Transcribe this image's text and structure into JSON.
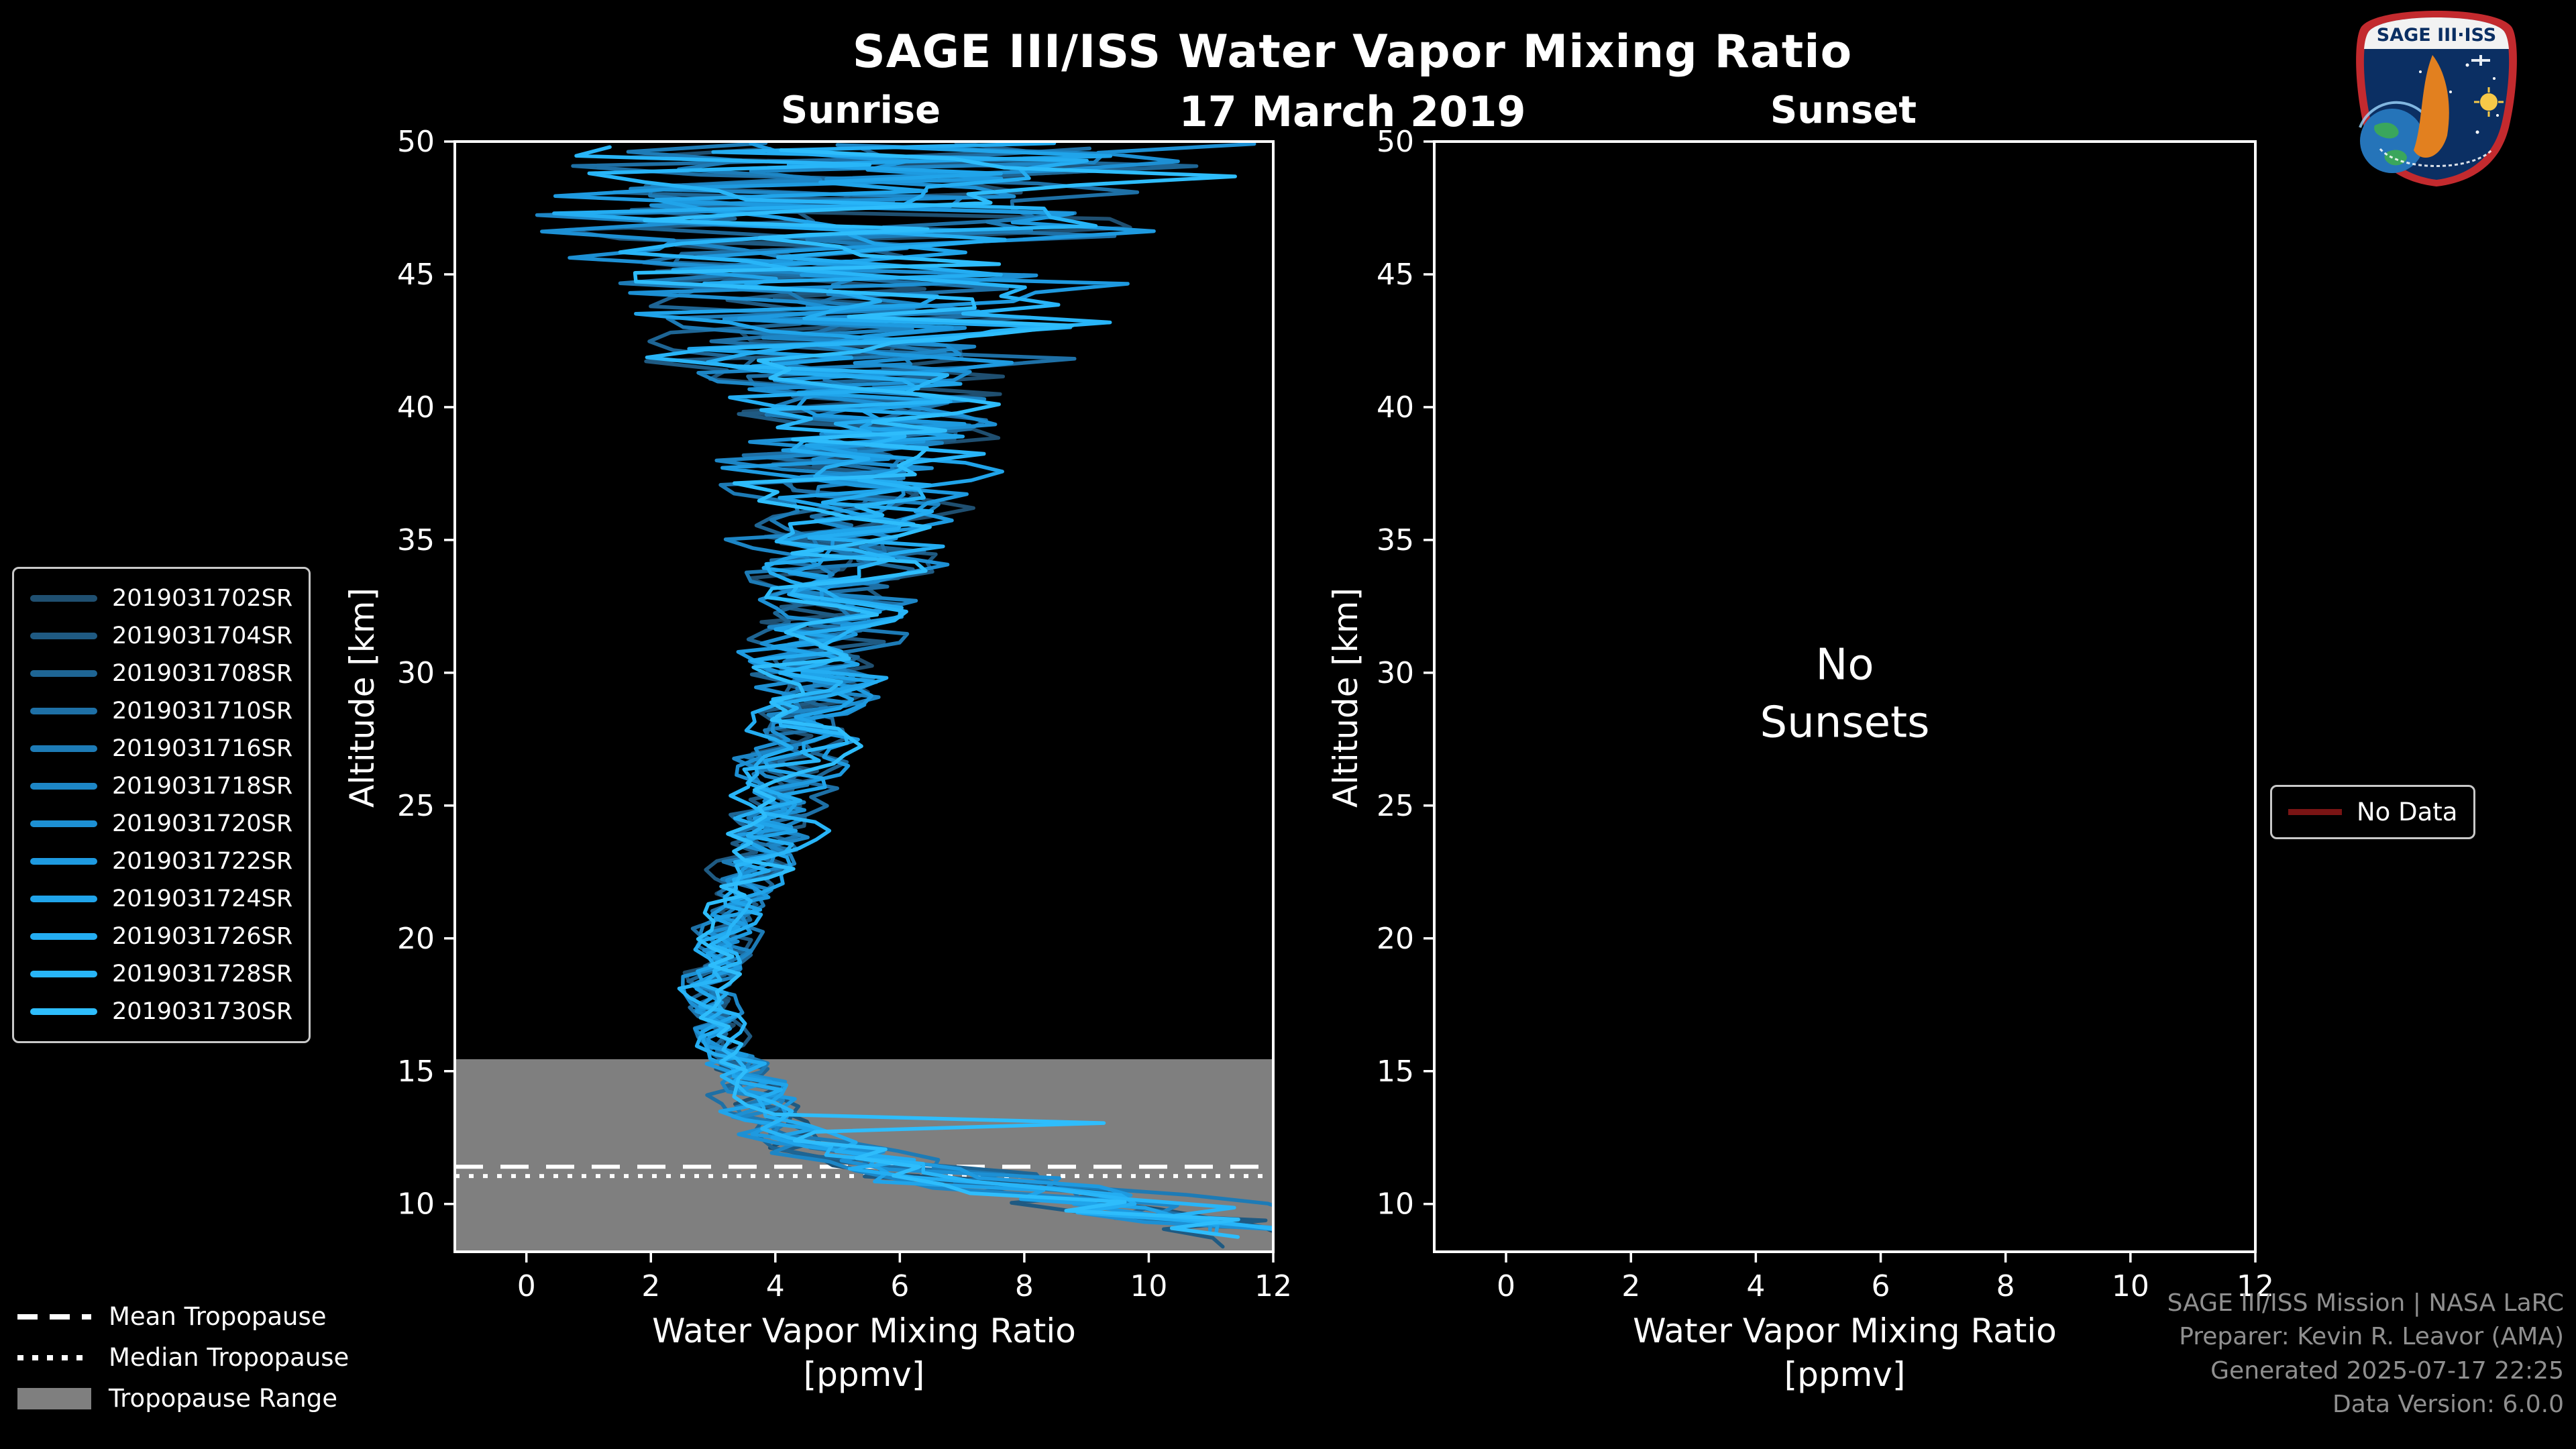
{
  "page": {
    "title": "SAGE III/ISS Water Vapor Mixing Ratio",
    "date": "17 March 2019",
    "credits": [
      "SAGE III/ISS Mission | NASA LaRC",
      "Preparer: Kevin R. Leavor (AMA)",
      "Generated 2025-07-17 22:25",
      "Data Version: 6.0.0"
    ],
    "logo": {
      "text": "SAGE III·ISS"
    }
  },
  "legends": {
    "tropopause": [
      {
        "label": "Mean Tropopause",
        "style": "dashed"
      },
      {
        "label": "Median Tropopause",
        "style": "dotted"
      },
      {
        "label": "Tropopause Range",
        "style": "patch",
        "color": "#7f7f7f"
      }
    ],
    "no_data_label": "No Data",
    "no_data_color": "#7a1414"
  },
  "chart_data": {
    "type": "line",
    "title": "SAGE III/ISS Water Vapor Mixing Ratio",
    "subtitle_date": "17 March 2019",
    "x_label": "Water Vapor Mixing Ratio",
    "x_unit": "[ppmv]",
    "y_label": "Altitude [km]",
    "x_range": [
      -1.15,
      12
    ],
    "y_range": [
      8.2,
      50
    ],
    "x_ticks": [
      0,
      2,
      4,
      6,
      8,
      10,
      12
    ],
    "y_ticks": [
      10,
      15,
      20,
      25,
      30,
      35,
      40,
      45,
      50
    ],
    "grid": false,
    "background": "#000000",
    "legend_position": "outside-left",
    "panels": {
      "sunrise": {
        "title": "Sunrise",
        "tropopause": {
          "mean_km": 11.4,
          "median_km": 11.05,
          "range_km": [
            8.2,
            15.45
          ],
          "band_color": "#7f7f7f"
        },
        "events": [
          {
            "id": "2019031702SR",
            "color": "#1f4f70",
            "seed": 11
          },
          {
            "id": "2019031704SR",
            "color": "#1f5a82",
            "seed": 23
          },
          {
            "id": "2019031708SR",
            "color": "#1e6594",
            "seed": 37
          },
          {
            "id": "2019031710SR",
            "color": "#1e70a6",
            "seed": 41
          },
          {
            "id": "2019031716SR",
            "color": "#1d7bb6",
            "seed": 53
          },
          {
            "id": "2019031718SR",
            "color": "#1d86c6",
            "seed": 67
          },
          {
            "id": "2019031720SR",
            "color": "#1d90d4",
            "seed": 79
          },
          {
            "id": "2019031722SR",
            "color": "#1e9ae0",
            "seed": 83
          },
          {
            "id": "2019031724SR",
            "color": "#20a4ea",
            "seed": 97
          },
          {
            "id": "2019031726SR",
            "color": "#24adf2",
            "seed": 113
          },
          {
            "id": "2019031728SR",
            "color": "#28b5f8",
            "seed": 127
          },
          {
            "id": "2019031730SR",
            "color": "#2ebdfc",
            "seed": 139
          }
        ],
        "profile_envelope": [
          [
            8.5,
            12.5,
            2.2
          ],
          [
            9.0,
            11.8,
            2.4
          ],
          [
            10.0,
            9.5,
            2.6
          ],
          [
            10.8,
            7.2,
            2.4
          ],
          [
            11.5,
            5.6,
            1.8
          ],
          [
            12.5,
            4.3,
            1.1
          ],
          [
            13.5,
            3.8,
            0.85
          ],
          [
            15.0,
            3.4,
            0.7
          ],
          [
            16.5,
            3.05,
            0.6
          ],
          [
            18.0,
            2.9,
            0.55
          ],
          [
            19.5,
            3.15,
            0.6
          ],
          [
            21.0,
            3.4,
            0.7
          ],
          [
            23.0,
            3.75,
            0.85
          ],
          [
            25.0,
            4.1,
            0.95
          ],
          [
            27.0,
            4.35,
            1.1
          ],
          [
            30.0,
            4.7,
            1.35
          ],
          [
            33.0,
            5.0,
            1.7
          ],
          [
            35.0,
            5.15,
            2.0
          ],
          [
            37.0,
            5.3,
            2.4
          ],
          [
            39.0,
            5.4,
            2.9
          ],
          [
            41.0,
            5.45,
            3.6
          ],
          [
            43.0,
            5.5,
            4.4
          ],
          [
            45.0,
            5.5,
            5.3
          ],
          [
            47.0,
            5.5,
            6.2
          ],
          [
            50.0,
            5.5,
            7.0
          ]
        ],
        "spike": {
          "below_alt_km": 13.5,
          "probability": 0.05,
          "magnitude_ppmv": 7
        }
      },
      "sunset": {
        "title": "Sunset",
        "message": "No\nSunsets",
        "events": []
      }
    }
  }
}
